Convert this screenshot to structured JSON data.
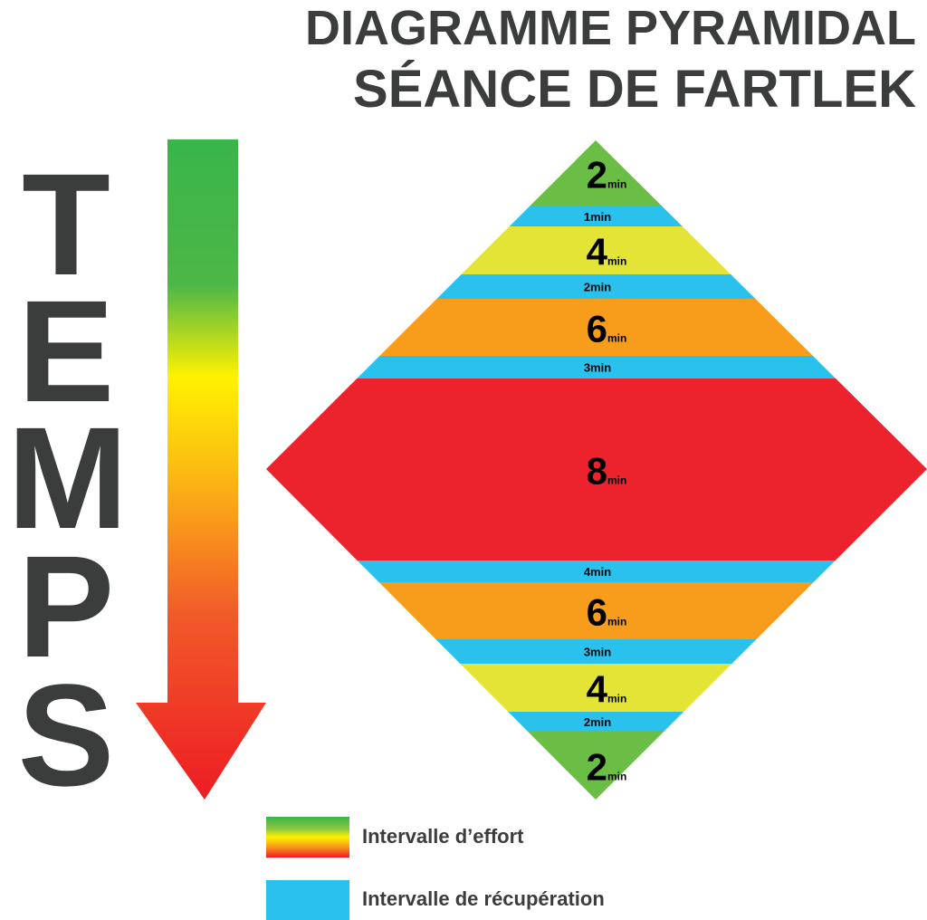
{
  "title": {
    "line1": "DIAGRAMME PYRAMIDAL",
    "line2": "SÉANCE DE FARTLEK"
  },
  "time_axis": {
    "letters": [
      "T",
      "E",
      "M",
      "P",
      "S"
    ],
    "arrow_colors": [
      "#39b54a",
      "#fff200",
      "#ed1c24"
    ]
  },
  "unit": "min",
  "intervals": [
    {
      "type": "effort",
      "minutes": 2,
      "color": "#6abd45"
    },
    {
      "type": "recovery",
      "minutes": 1,
      "color": "#2bc1ed"
    },
    {
      "type": "effort",
      "minutes": 4,
      "color": "#e3e435"
    },
    {
      "type": "recovery",
      "minutes": 2,
      "color": "#2bc1ed"
    },
    {
      "type": "effort",
      "minutes": 6,
      "color": "#f89c1c"
    },
    {
      "type": "recovery",
      "minutes": 3,
      "color": "#2bc1ed"
    },
    {
      "type": "effort",
      "minutes": 8,
      "color": "#ec232c"
    },
    {
      "type": "recovery",
      "minutes": 4,
      "color": "#2bc1ed"
    },
    {
      "type": "effort",
      "minutes": 6,
      "color": "#f89c1c"
    },
    {
      "type": "recovery",
      "minutes": 3,
      "color": "#2bc1ed"
    },
    {
      "type": "effort",
      "minutes": 4,
      "color": "#e3e435"
    },
    {
      "type": "recovery",
      "minutes": 2,
      "color": "#2bc1ed"
    },
    {
      "type": "effort",
      "minutes": 2,
      "color": "#6abd45"
    }
  ],
  "legend": {
    "effort_label": "Intervalle d’effort",
    "recovery_label": "Intervalle de récupération",
    "recovery_color": "#2bc1ed"
  }
}
